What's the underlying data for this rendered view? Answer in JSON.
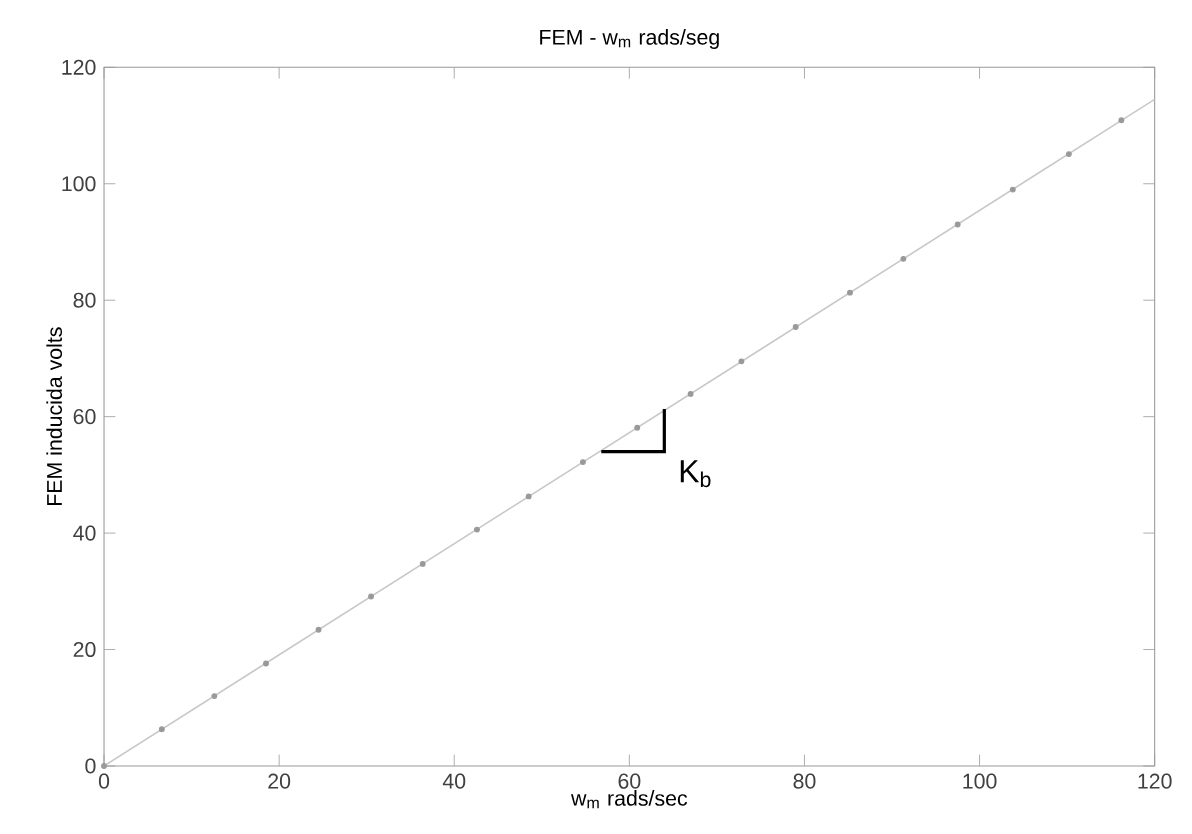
{
  "chart_data": {
    "type": "line",
    "title": "FEM - w$_{m}$ rads/seg",
    "xlabel": "w$_{m}$ rads/sec",
    "ylabel": "FEM inducida volts",
    "series": [
      {
        "color": "#c8c8c8",
        "marker": "none",
        "x": [
          0,
          120
        ],
        "values": [
          0,
          114.5
        ]
      },
      {
        "type": "scatter",
        "color": "#999999",
        "marker": "circle",
        "x": [
          0,
          6.6,
          12.6,
          18.5,
          24.5,
          30.5,
          36.4,
          42.6,
          48.5,
          54.7,
          60.9,
          67.0,
          72.8,
          79.0,
          85.2,
          91.3,
          97.5,
          103.8,
          110.2,
          116.2
        ],
        "values": [
          0,
          6.3,
          12.0,
          17.6,
          23.4,
          29.1,
          34.7,
          40.6,
          46.3,
          52.2,
          58.1,
          63.9,
          69.5,
          75.4,
          81.3,
          87.1,
          93.0,
          99.0,
          105.1,
          110.9
        ]
      }
    ],
    "annotations": [
      "K$_{b}$"
    ],
    "xlim": [
      0,
      120
    ],
    "ylim": [
      0,
      120
    ],
    "xticks": [
      0,
      20,
      40,
      60,
      80,
      100,
      120
    ],
    "yticks": [
      0,
      20,
      40,
      60,
      80,
      100,
      120
    ],
    "grid": false
  }
}
